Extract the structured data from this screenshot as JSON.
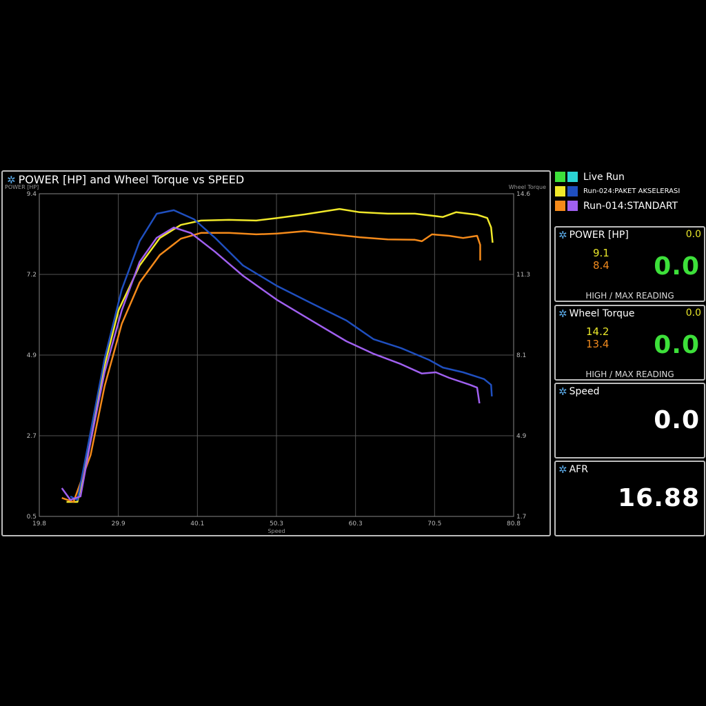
{
  "chart_panel": {
    "title": "POWER [HP] and Wheel Torque  vs SPEED",
    "icon": "gear-icon"
  },
  "legend": [
    {
      "label": "Live Run",
      "colors": [
        "#3de03a",
        "#2bd4d4"
      ]
    },
    {
      "label": "Run-024:PAKET AKSELERASI",
      "colors": [
        "#f0e82a",
        "#1f4fbf"
      ]
    },
    {
      "label": "Run-014:STANDART",
      "colors": [
        "#f58a1a",
        "#a060f0"
      ]
    }
  ],
  "gauges": {
    "power": {
      "title": "POWER [HP]",
      "live_small": "0.0",
      "high": "9.1",
      "max": "8.4",
      "value": "0.0",
      "footer": "HIGH / MAX READING"
    },
    "torque": {
      "title": "Wheel Torque",
      "live_small": "0.0",
      "high": "14.2",
      "max": "13.4",
      "value": "0.0",
      "footer": "HIGH / MAX READING"
    },
    "speed": {
      "title": "Speed",
      "value": "0.0"
    },
    "afr": {
      "title": "AFR",
      "value": "16.88"
    }
  },
  "chart_data": {
    "type": "line",
    "title": "POWER [HP] and Wheel Torque  vs SPEED",
    "xlabel": "Speed",
    "ylabel_left": "POWER [HP]",
    "ylabel_right": "Wheel Torque",
    "xlim": [
      19.8,
      80.8
    ],
    "ylim_left": [
      0.5,
      9.4
    ],
    "ylim_right": [
      1.7,
      14.6
    ],
    "x_ticks": [
      "19.8",
      "29.9",
      "40.1",
      "50.3",
      "60.3",
      "70.5",
      "80.8"
    ],
    "y_ticks_left": [
      "9.4",
      "7.2",
      "4.9",
      "2.7",
      "0.5"
    ],
    "y_ticks_right": [
      "14.6",
      "11.3",
      "8.1",
      "4.9",
      "1.7"
    ],
    "grid": true,
    "series": [
      {
        "name": "Run-024:PAKET AKSELERASI",
        "quantity": "power",
        "axis": "left",
        "color": "#f0e82a",
        "x": [
          23.3,
          24.7,
          26.4,
          28.2,
          30.0,
          32.7,
          35.3,
          38.0,
          40.6,
          44.2,
          47.7,
          50.4,
          53.9,
          58.4,
          61.0,
          64.6,
          68.1,
          71.7,
          73.4,
          76.1,
          77.4,
          77.9,
          78.1
        ],
        "y": [
          0.9,
          0.9,
          2.57,
          4.66,
          6.19,
          7.42,
          8.18,
          8.54,
          8.66,
          8.68,
          8.66,
          8.73,
          8.83,
          8.98,
          8.89,
          8.85,
          8.85,
          8.76,
          8.89,
          8.82,
          8.73,
          8.47,
          8.05
        ]
      },
      {
        "name": "Run-014:STANDART",
        "quantity": "power",
        "axis": "left",
        "color": "#f58a1a",
        "x": [
          22.7,
          24.2,
          26.4,
          28.2,
          30.4,
          32.7,
          35.3,
          38.0,
          40.6,
          44.2,
          47.7,
          50.4,
          53.9,
          57.5,
          61.0,
          64.6,
          68.1,
          69.0,
          70.3,
          72.5,
          74.3,
          76.1,
          76.5,
          76.5
        ],
        "y": [
          1.01,
          0.9,
          2.19,
          4.09,
          5.81,
          6.95,
          7.71,
          8.16,
          8.32,
          8.32,
          8.28,
          8.3,
          8.37,
          8.28,
          8.2,
          8.14,
          8.13,
          8.09,
          8.28,
          8.24,
          8.18,
          8.24,
          7.99,
          7.56
        ]
      },
      {
        "name": "Run-024:PAKET AKSELERASI",
        "quantity": "torque",
        "axis": "right",
        "color": "#1f4fbf",
        "x": [
          23.8,
          24.7,
          26.0,
          28.2,
          30.4,
          32.7,
          34.9,
          37.1,
          39.7,
          42.4,
          46.0,
          50.4,
          54.8,
          59.3,
          62.8,
          66.3,
          69.9,
          71.7,
          74.3,
          77.0,
          77.9,
          78.0
        ],
        "y": [
          2.5,
          2.36,
          4.43,
          8.01,
          10.77,
          12.7,
          13.8,
          13.94,
          13.58,
          12.84,
          11.73,
          10.91,
          10.22,
          9.53,
          8.78,
          8.43,
          7.96,
          7.65,
          7.46,
          7.19,
          6.96,
          6.5
        ]
      },
      {
        "name": "Run-014:STANDART",
        "quantity": "torque",
        "axis": "right",
        "color": "#a060f0",
        "x": [
          22.7,
          23.8,
          25.1,
          26.4,
          28.2,
          30.4,
          32.7,
          34.9,
          37.1,
          39.3,
          42.4,
          46.0,
          50.4,
          54.8,
          59.3,
          62.8,
          66.3,
          69.0,
          70.8,
          72.5,
          75.2,
          76.1,
          76.4
        ],
        "y": [
          2.83,
          2.36,
          2.5,
          4.7,
          7.46,
          9.94,
          11.87,
          12.84,
          13.25,
          13.03,
          12.28,
          11.32,
          10.35,
          9.53,
          8.7,
          8.2,
          7.79,
          7.41,
          7.46,
          7.24,
          6.96,
          6.85,
          6.22
        ]
      }
    ]
  }
}
